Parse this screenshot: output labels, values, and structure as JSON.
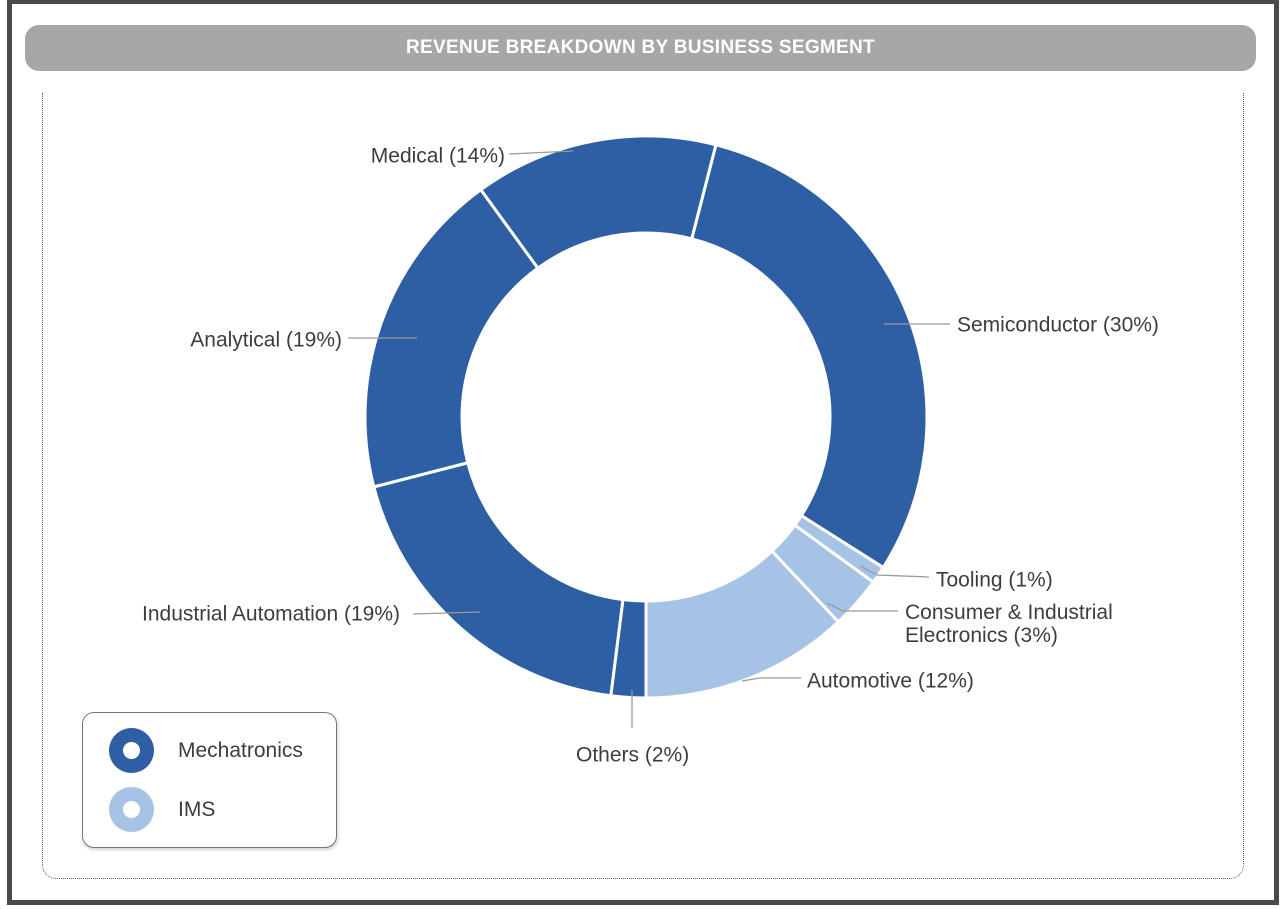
{
  "header": {
    "title": "REVENUE BREAKDOWN BY BUSINESS SEGMENT"
  },
  "chart_data": {
    "type": "pie",
    "subtype": "donut",
    "title": "REVENUE BREAKDOWN BY BUSINESS SEGMENT",
    "unit": "%",
    "start_angle_deg": 14.4,
    "direction": "clockwise",
    "segments": [
      {
        "label": "Semiconductor",
        "value": 30,
        "group": "Mechatronics"
      },
      {
        "label": "Tooling",
        "value": 1,
        "group": "IMS"
      },
      {
        "label": "Consumer & Industrial Electronics",
        "value": 3,
        "group": "IMS"
      },
      {
        "label": "Automotive",
        "value": 12,
        "group": "IMS"
      },
      {
        "label": "Others",
        "value": 2,
        "group": "Mechatronics"
      },
      {
        "label": "Industrial Automation",
        "value": 19,
        "group": "Mechatronics"
      },
      {
        "label": "Analytical",
        "value": 19,
        "group": "Mechatronics"
      },
      {
        "label": "Medical",
        "value": 14,
        "group": "Mechatronics"
      }
    ],
    "groups": [
      {
        "name": "Mechatronics",
        "color": "#2E5EA4"
      },
      {
        "name": "IMS",
        "color": "#A6C3E5"
      }
    ],
    "legend_position": "bottom-left",
    "colors": {
      "title_bar_bg": "#A7A7A7",
      "title_text": "#FFFFFF",
      "label_text": "#3D3D3D",
      "leader_line": "#9A9A9A",
      "segment_gap": "#FFFFFF"
    }
  }
}
